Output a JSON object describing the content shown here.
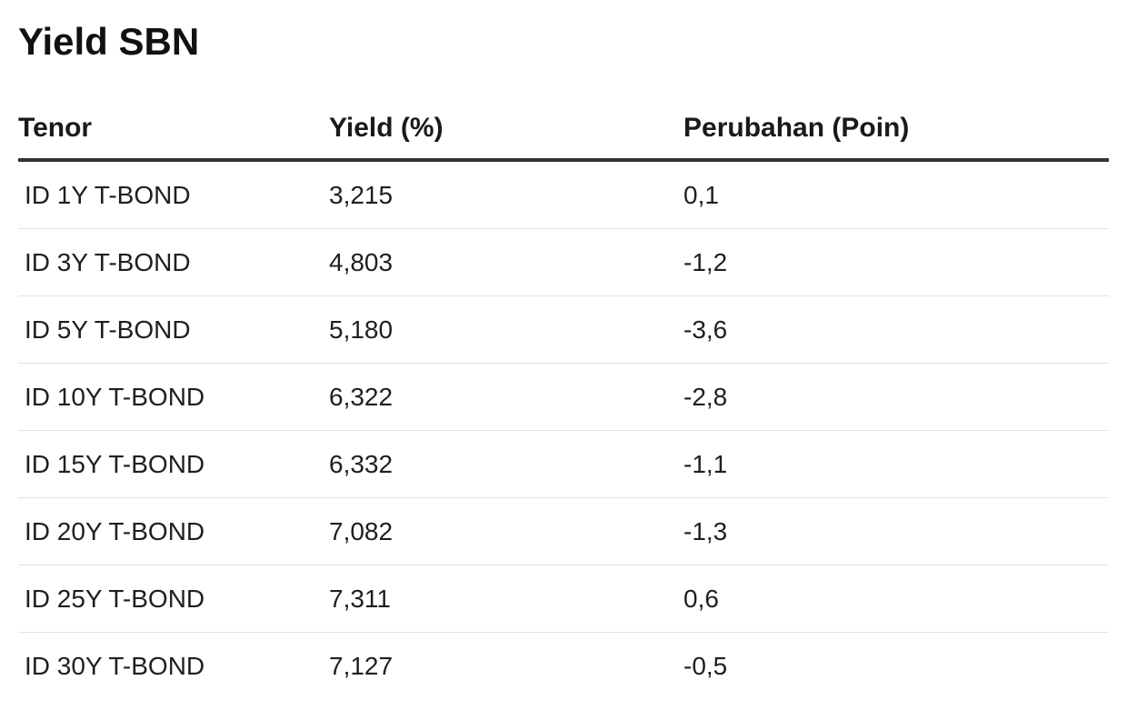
{
  "title": "Yield SBN",
  "chart_data": {
    "type": "table",
    "title": "Yield SBN",
    "columns": [
      "Tenor",
      "Yield (%)",
      "Perubahan (Poin)"
    ],
    "rows": [
      {
        "tenor": "ID 1Y T-BOND",
        "yield": "3,215",
        "change": "0,1"
      },
      {
        "tenor": "ID 3Y T-BOND",
        "yield": "4,803",
        "change": "-1,2"
      },
      {
        "tenor": "ID 5Y T-BOND",
        "yield": "5,180",
        "change": "-3,6"
      },
      {
        "tenor": "ID 10Y T-BOND",
        "yield": "6,322",
        "change": "-2,8"
      },
      {
        "tenor": "ID 15Y T-BOND",
        "yield": "6,332",
        "change": "-1,1"
      },
      {
        "tenor": "ID 20Y T-BOND",
        "yield": "7,082",
        "change": "-1,3"
      },
      {
        "tenor": "ID 25Y T-BOND",
        "yield": "7,311",
        "change": "0,6"
      },
      {
        "tenor": "ID 30Y T-BOND",
        "yield": "7,127",
        "change": "-0,5"
      }
    ]
  }
}
